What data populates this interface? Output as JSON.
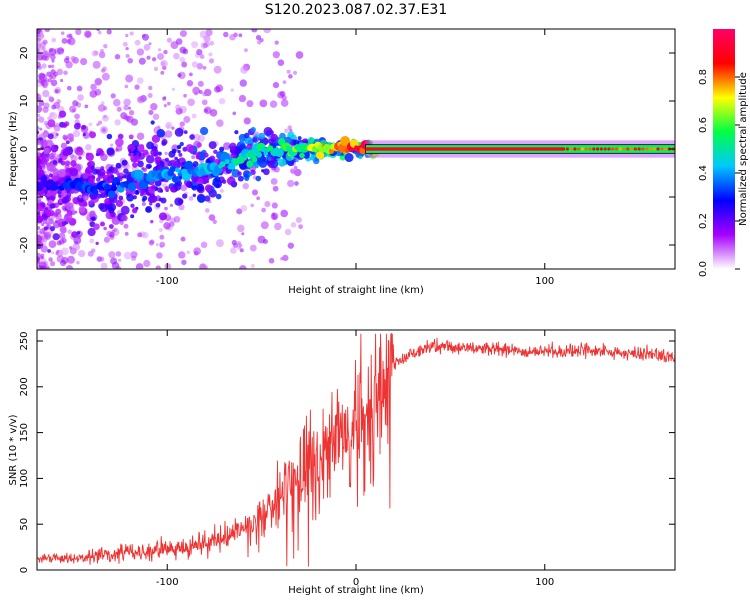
{
  "title": "S120.2023.087.02.37.E31",
  "chart_data": [
    {
      "type": "heatmap",
      "xlabel": "Height of straight line (km)",
      "ylabel": "Frequency (Hz)",
      "xlim": [
        -169,
        169
      ],
      "ylim": [
        -25,
        25
      ],
      "x_ticks": [
        -100,
        0,
        100
      ],
      "x_tick_labels": [
        "-100",
        "",
        "100"
      ],
      "y_ticks": [
        -20,
        -10,
        0,
        10,
        20
      ],
      "y_tick_labels": [
        "-20",
        "-10",
        "0",
        "10",
        "20"
      ],
      "colorbar": {
        "label": "Normalized spectral amplitude",
        "range": [
          0,
          1
        ],
        "ticks": [
          0.0,
          0.2,
          0.4,
          0.6,
          0.8
        ],
        "tick_labels": [
          "0.0",
          "0.2",
          "0.4",
          "0.6",
          "0.8"
        ],
        "colors": [
          "#ffffff",
          "#a600ff",
          "#0000ff",
          "#00c8ff",
          "#00ff44",
          "#ffff00",
          "#ff0000",
          "#ff0066"
        ]
      },
      "description_points": {
        "core_line": {
          "x_start": 5,
          "x_end": 169,
          "y": 0,
          "amplitude": 0.9
        },
        "ridge": [
          {
            "x": -169,
            "y": -7,
            "amplitude": 0.25
          },
          {
            "x": -130,
            "y": -8,
            "amplitude": 0.35
          },
          {
            "x": -100,
            "y": -5,
            "amplitude": 0.4
          },
          {
            "x": -75,
            "y": -4,
            "amplitude": 0.45
          },
          {
            "x": -60,
            "y": -2,
            "amplitude": 0.5
          },
          {
            "x": -45,
            "y": 0,
            "amplitude": 0.55
          },
          {
            "x": -25,
            "y": 0,
            "amplitude": 0.65
          },
          {
            "x": -10,
            "y": 0,
            "amplitude": 0.8
          },
          {
            "x": 5,
            "y": 0,
            "amplitude": 0.9
          }
        ]
      }
    },
    {
      "type": "line",
      "xlabel": "Height of straight line (km)",
      "ylabel": "SNR (10 * v/v)",
      "xlim": [
        -169,
        169
      ],
      "ylim": [
        0,
        262
      ],
      "x_ticks": [
        -100,
        0,
        100
      ],
      "x_tick_labels": [
        "-100",
        "0",
        "100"
      ],
      "y_ticks": [
        0,
        50,
        100,
        150,
        200,
        250
      ],
      "y_tick_labels": [
        "0",
        "50",
        "100",
        "150",
        "200",
        "250"
      ],
      "series": [
        {
          "color": "#ee3333",
          "x": [
            -169,
            -150,
            -130,
            -110,
            -90,
            -70,
            -60,
            -50,
            -40,
            -30,
            -20,
            -10,
            -5,
            0,
            5,
            10,
            15,
            20,
            25,
            30,
            40,
            60,
            80,
            100,
            120,
            140,
            160,
            169
          ],
          "y": [
            12,
            13,
            18,
            20,
            25,
            35,
            45,
            60,
            80,
            100,
            120,
            140,
            150,
            160,
            175,
            195,
            210,
            225,
            230,
            236,
            245,
            242,
            240,
            238,
            240,
            237,
            235,
            232
          ]
        }
      ]
    }
  ]
}
